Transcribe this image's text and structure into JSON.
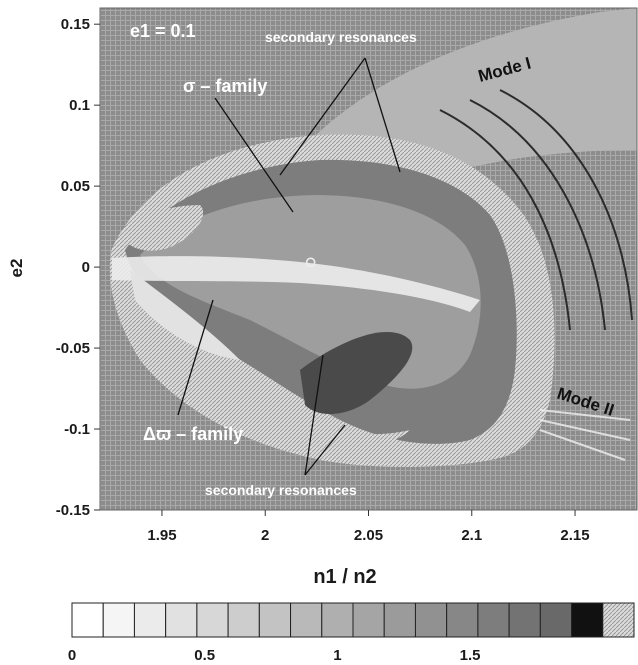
{
  "chart_data": {
    "type": "heatmap",
    "xlabel": "n1 / n2",
    "ylabel": "e2",
    "xlim": [
      1.92,
      2.18
    ],
    "ylim": [
      -0.15,
      0.16
    ],
    "x_ticks": [
      1.95,
      2.0,
      2.05,
      2.1,
      2.15
    ],
    "x_tick_labels": [
      "1.95",
      "2",
      "2.05",
      "2.1",
      "2.15"
    ],
    "y_ticks": [
      0.15,
      0.1,
      0.05,
      0,
      -0.05,
      -0.1,
      -0.15
    ],
    "y_tick_labels": [
      "0.15",
      "0.1",
      "0.05",
      "0",
      "-0.05",
      "-0.1",
      "-0.15"
    ],
    "colorbar": {
      "range": [
        0,
        2
      ],
      "levels": 18,
      "tick_values": [
        0,
        0.5,
        1,
        1.5
      ],
      "tick_labels": [
        "0",
        "0.5",
        "1",
        "1.5"
      ]
    },
    "annotations": {
      "parameter": "e1 = 0.1",
      "sigma_family": "σ – family",
      "delta_varpi_family": "Δϖ – family",
      "secondary_top": "secondary resonances",
      "secondary_bottom": "secondary resonances",
      "mode_1": "Mode I",
      "mode_2": "Mode II"
    },
    "center_point": {
      "x": 2.022,
      "y": 0.003
    }
  },
  "colors": {
    "chaotic_background": "#8f8f8f",
    "hatched_fill": "#c8c8c8",
    "dark_level": "#111111",
    "light_level": "#f4f4f4"
  }
}
